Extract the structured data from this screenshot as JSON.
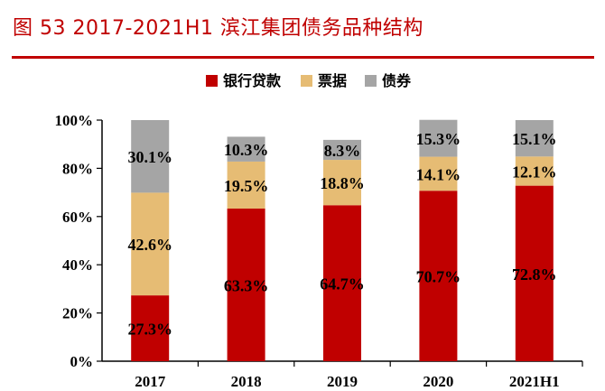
{
  "title": "图 53 2017-2021H1 滨江集团债务品种结构",
  "chart_data": {
    "type": "bar",
    "stacked": true,
    "title": "图 53 2017-2021H1 滨江集团债务品种结构",
    "categories": [
      "2017",
      "2018",
      "2019",
      "2020",
      "2021H1"
    ],
    "series": [
      {
        "name": "银行贷款",
        "color": "#c00000",
        "values": [
          27.3,
          63.3,
          64.7,
          70.7,
          72.8
        ],
        "labels": [
          "27.3%",
          "63.3%",
          "64.7%",
          "70.7%",
          "72.8%"
        ]
      },
      {
        "name": "票据",
        "color": "#e6bc74",
        "values": [
          42.6,
          19.5,
          18.8,
          14.1,
          12.1
        ],
        "labels": [
          "42.6%",
          "19.5%",
          "18.8%",
          "14.1%",
          "12.1%"
        ]
      },
      {
        "name": "债券",
        "color": "#a5a5a5",
        "values": [
          30.1,
          10.3,
          8.3,
          15.3,
          15.1
        ],
        "labels": [
          "30.1%",
          "10.3%",
          "8.3%",
          "15.3%",
          "15.1%"
        ]
      }
    ],
    "yticks": [
      "0%",
      "20%",
      "40%",
      "60%",
      "80%",
      "100%"
    ],
    "ylim": [
      0,
      100
    ],
    "legend_position": "top",
    "grid": false
  }
}
